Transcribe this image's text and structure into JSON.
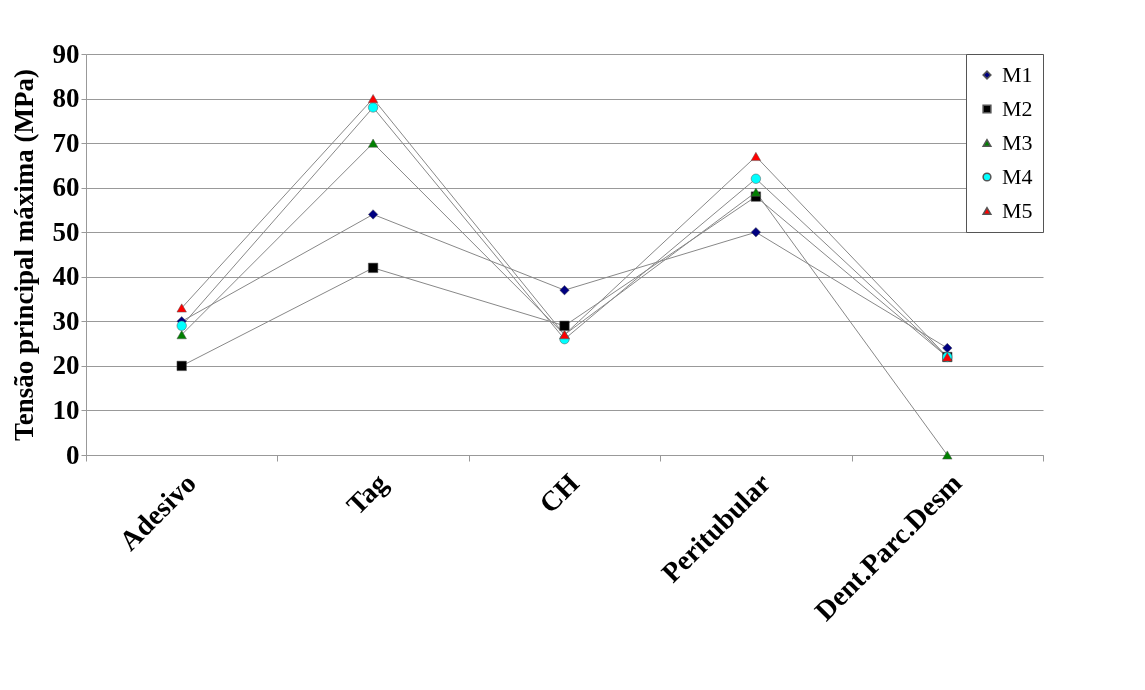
{
  "chart_data": {
    "type": "line",
    "ylabel": "Tensão principal máxima (MPa)",
    "categories": [
      "Adesivo",
      "Tag",
      "CH",
      "Peritubular",
      "Dent.Parc.Desm"
    ],
    "series": [
      {
        "name": "M1",
        "color": "#000080",
        "marker": "diamond",
        "values": [
          30,
          54,
          37,
          50,
          24
        ]
      },
      {
        "name": "M2",
        "color": "#000000",
        "marker": "square",
        "values": [
          20,
          42,
          29,
          58,
          22
        ]
      },
      {
        "name": "M3",
        "color": "#008000",
        "marker": "triangle",
        "values": [
          27,
          70,
          27,
          59,
          0
        ]
      },
      {
        "name": "M4",
        "color": "#00ffff",
        "marker": "circle",
        "values": [
          29,
          78,
          26,
          62,
          22
        ]
      },
      {
        "name": "M5",
        "color": "#ff0000",
        "marker": "triangle",
        "values": [
          33,
          80,
          27,
          67,
          22
        ]
      }
    ],
    "ylim": [
      0,
      90
    ],
    "yticks": [
      0,
      10,
      20,
      30,
      40,
      50,
      60,
      70,
      80,
      90
    ],
    "grid": "y",
    "legend": "top right"
  }
}
